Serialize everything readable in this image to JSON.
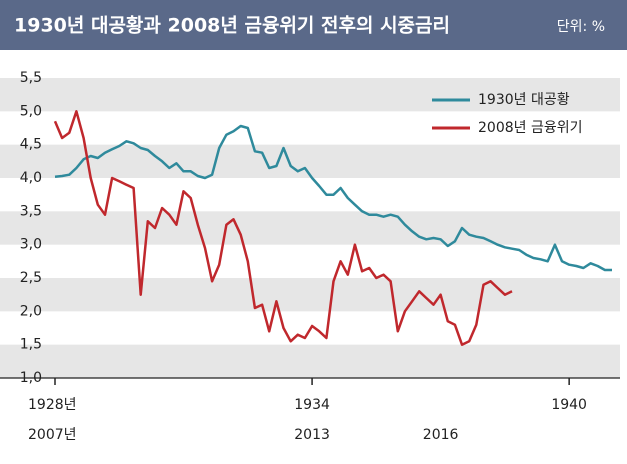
{
  "chart_data": {
    "type": "line",
    "title": "1930년 대공황과 2008년 금융위기 전후의 시중금리",
    "unit": "단위: %",
    "categories": [
      "1928년",
      null,
      null,
      null,
      null,
      null,
      null,
      null,
      null,
      null,
      null,
      null,
      null,
      null,
      null,
      null,
      null,
      null,
      null,
      null,
      null,
      null,
      null,
      null,
      null,
      null,
      null,
      null,
      null,
      null,
      null,
      null,
      null,
      null,
      null,
      null,
      "1934",
      null,
      null,
      null,
      null,
      null,
      null,
      null,
      null,
      null,
      null,
      null,
      null,
      null,
      null,
      null,
      null,
      null,
      null,
      null,
      null,
      null,
      null,
      null,
      null,
      null,
      null,
      null,
      null,
      null,
      null,
      null,
      null,
      null,
      null,
      null,
      "1940",
      null,
      null,
      null,
      null,
      null,
      null
    ],
    "categories2": [
      "2007년",
      null,
      null,
      null,
      null,
      null,
      null,
      null,
      null,
      null,
      null,
      null,
      null,
      null,
      null,
      null,
      null,
      null,
      null,
      null,
      null,
      null,
      null,
      null,
      null,
      null,
      null,
      null,
      null,
      null,
      null,
      null,
      null,
      null,
      null,
      null,
      "2013",
      null,
      null,
      null,
      null,
      null,
      null,
      null,
      null,
      null,
      null,
      null,
      null,
      null,
      null,
      null,
      null,
      null,
      "2016",
      null,
      null,
      null,
      null,
      null,
      null,
      null,
      null,
      null,
      null,
      null,
      null,
      null,
      null,
      null,
      null,
      null,
      null,
      null,
      null,
      null,
      null,
      null
    ],
    "series": [
      {
        "name": "1930년 대공황",
        "color": "#2f8a9c",
        "values": [
          4.02,
          4.03,
          4.05,
          4.15,
          4.28,
          4.33,
          4.3,
          4.38,
          4.43,
          4.48,
          4.55,
          4.52,
          4.45,
          4.42,
          4.33,
          4.25,
          4.15,
          4.22,
          4.1,
          4.1,
          4.03,
          4.0,
          4.05,
          4.45,
          4.65,
          4.7,
          4.78,
          4.75,
          4.4,
          4.38,
          4.15,
          4.18,
          4.45,
          4.18,
          4.1,
          4.15,
          4.0,
          3.88,
          3.75,
          3.75,
          3.85,
          3.7,
          3.6,
          3.5,
          3.45,
          3.45,
          3.42,
          3.45,
          3.42,
          3.3,
          3.2,
          3.12,
          3.08,
          3.1,
          3.08,
          2.98,
          3.05,
          3.25,
          3.15,
          3.12,
          3.1,
          3.05,
          3.0,
          2.96,
          2.94,
          2.92,
          2.85,
          2.8,
          2.78,
          2.75,
          3.0,
          2.75,
          2.7,
          2.68,
          2.65,
          2.72,
          2.68,
          2.62,
          2.62
        ]
      },
      {
        "name": "2008년 금융위기",
        "color": "#c0282d",
        "values": [
          4.85,
          4.6,
          4.68,
          5.0,
          4.6,
          4.0,
          3.6,
          3.45,
          4.0,
          3.95,
          3.9,
          3.85,
          2.25,
          3.35,
          3.25,
          3.55,
          3.45,
          3.3,
          3.8,
          3.7,
          3.3,
          2.95,
          2.45,
          2.7,
          3.3,
          3.38,
          3.15,
          2.75,
          2.05,
          2.1,
          1.7,
          2.15,
          1.75,
          1.55,
          1.65,
          1.6,
          1.78,
          1.7,
          1.6,
          2.45,
          2.75,
          2.55,
          3.0,
          2.6,
          2.65,
          2.5,
          2.55,
          2.45,
          1.7,
          2.0,
          2.15,
          2.3,
          2.2,
          2.1,
          2.25,
          1.85,
          1.8,
          1.5,
          1.55,
          1.8,
          2.4,
          2.45,
          2.35,
          2.25,
          2.3,
          null,
          null,
          null,
          null,
          null,
          null,
          null,
          null,
          null,
          null,
          null,
          null,
          null,
          null
        ]
      }
    ],
    "ylim": [
      1.0,
      5.5
    ],
    "yticks": [
      {
        "value": 1.0,
        "label": "1,0"
      },
      {
        "value": 1.5,
        "label": "1,5"
      },
      {
        "value": 2.0,
        "label": "2,0"
      },
      {
        "value": 2.5,
        "label": "2,5"
      },
      {
        "value": 3.0,
        "label": "3,0"
      },
      {
        "value": 3.5,
        "label": "3,5"
      },
      {
        "value": 4.0,
        "label": "4,0"
      },
      {
        "value": 4.5,
        "label": "4,5"
      },
      {
        "value": 5.0,
        "label": "5,0"
      },
      {
        "value": 5.5,
        "label": "5,5"
      }
    ],
    "grid": true,
    "legend": "upper right"
  }
}
